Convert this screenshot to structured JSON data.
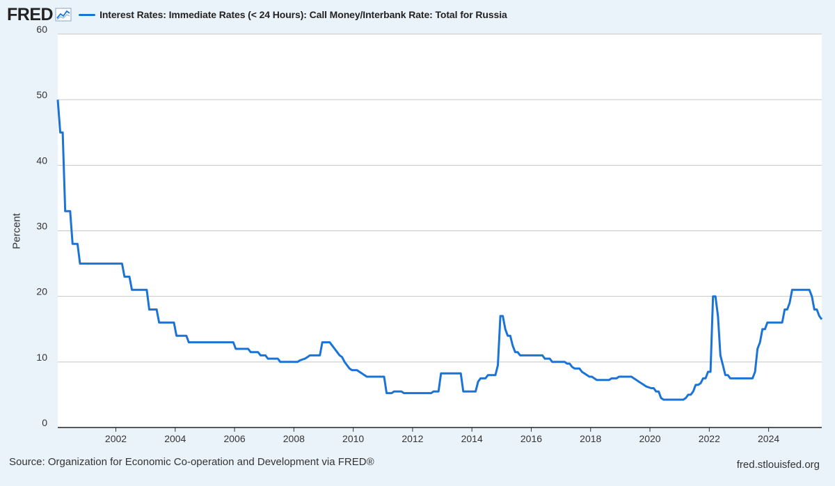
{
  "header": {
    "logo_text": "FRED",
    "logo_icon": "line-chart-icon"
  },
  "chart_data": {
    "type": "line",
    "title": "",
    "ylabel": "Percent",
    "xlabel": "",
    "ylim": [
      0,
      60
    ],
    "yticks": [
      0,
      10,
      20,
      30,
      40,
      50,
      60
    ],
    "xticks": [
      "2002",
      "2004",
      "2006",
      "2008",
      "2010",
      "2012",
      "2014",
      "2016",
      "2018",
      "2020",
      "2022",
      "2024"
    ],
    "grid": true,
    "legend_position": "top-left",
    "colors": {
      "series": "#1a73d6",
      "grid": "#c8c8c8",
      "plot_bg": "#ffffff",
      "page_bg": "#eaf2fa"
    },
    "series": [
      {
        "name": "Interest Rates: Immediate Rates (< 24 Hours): Call Money/Interbank Rate: Total for Russia",
        "points": [
          [
            "2000-01",
            50
          ],
          [
            "2000-02",
            45
          ],
          [
            "2000-03",
            45
          ],
          [
            "2000-04",
            33
          ],
          [
            "2000-06",
            33
          ],
          [
            "2000-07",
            28
          ],
          [
            "2000-09",
            28
          ],
          [
            "2000-10",
            25
          ],
          [
            "2002-03",
            25
          ],
          [
            "2002-04",
            23
          ],
          [
            "2002-06",
            23
          ],
          [
            "2002-07",
            21
          ],
          [
            "2003-01",
            21
          ],
          [
            "2003-02",
            18
          ],
          [
            "2003-05",
            18
          ],
          [
            "2003-06",
            16
          ],
          [
            "2003-12",
            16
          ],
          [
            "2004-01",
            14
          ],
          [
            "2004-05",
            14
          ],
          [
            "2004-06",
            13
          ],
          [
            "2005-12",
            13
          ],
          [
            "2006-01",
            12
          ],
          [
            "2006-06",
            12
          ],
          [
            "2006-07",
            11.5
          ],
          [
            "2006-10",
            11.5
          ],
          [
            "2006-11",
            11
          ],
          [
            "2007-01",
            11
          ],
          [
            "2007-02",
            10.5
          ],
          [
            "2007-06",
            10.5
          ],
          [
            "2007-07",
            10
          ],
          [
            "2008-02",
            10
          ],
          [
            "2008-03",
            10.25
          ],
          [
            "2008-05",
            10.5
          ],
          [
            "2008-06",
            10.75
          ],
          [
            "2008-07",
            11
          ],
          [
            "2008-11",
            11
          ],
          [
            "2008-12",
            13
          ],
          [
            "2009-03",
            13
          ],
          [
            "2009-04",
            12.5
          ],
          [
            "2009-05",
            12
          ],
          [
            "2009-06",
            11.5
          ],
          [
            "2009-07",
            11
          ],
          [
            "2009-08",
            10.75
          ],
          [
            "2009-09",
            10
          ],
          [
            "2009-10",
            9.5
          ],
          [
            "2009-11",
            9
          ],
          [
            "2009-12",
            8.75
          ],
          [
            "2010-02",
            8.75
          ],
          [
            "2010-03",
            8.5
          ],
          [
            "2010-04",
            8.25
          ],
          [
            "2010-05",
            8
          ],
          [
            "2010-06",
            7.75
          ],
          [
            "2011-01",
            7.75
          ],
          [
            "2011-02",
            5.25
          ],
          [
            "2011-04",
            5.25
          ],
          [
            "2011-05",
            5.5
          ],
          [
            "2011-08",
            5.5
          ],
          [
            "2011-09",
            5.25
          ],
          [
            "2012-08",
            5.25
          ],
          [
            "2012-09",
            5.5
          ],
          [
            "2012-11",
            5.5
          ],
          [
            "2012-12",
            8.25
          ],
          [
            "2013-08",
            8.25
          ],
          [
            "2013-09",
            5.5
          ],
          [
            "2014-02",
            5.5
          ],
          [
            "2014-03",
            7
          ],
          [
            "2014-04",
            7.5
          ],
          [
            "2014-06",
            7.5
          ],
          [
            "2014-07",
            8
          ],
          [
            "2014-10",
            8
          ],
          [
            "2014-11",
            9.5
          ],
          [
            "2014-12",
            17
          ],
          [
            "2015-01",
            17
          ],
          [
            "2015-02",
            15
          ],
          [
            "2015-03",
            14
          ],
          [
            "2015-04",
            14
          ],
          [
            "2015-05",
            12.5
          ],
          [
            "2015-06",
            11.5
          ],
          [
            "2015-07",
            11.5
          ],
          [
            "2015-08",
            11
          ],
          [
            "2016-05",
            11
          ],
          [
            "2016-06",
            10.5
          ],
          [
            "2016-08",
            10.5
          ],
          [
            "2016-09",
            10
          ],
          [
            "2017-02",
            10
          ],
          [
            "2017-03",
            9.75
          ],
          [
            "2017-04",
            9.75
          ],
          [
            "2017-05",
            9.25
          ],
          [
            "2017-06",
            9
          ],
          [
            "2017-08",
            9
          ],
          [
            "2017-09",
            8.5
          ],
          [
            "2017-10",
            8.25
          ],
          [
            "2017-12",
            7.75
          ],
          [
            "2018-01",
            7.75
          ],
          [
            "2018-02",
            7.5
          ],
          [
            "2018-03",
            7.25
          ],
          [
            "2018-08",
            7.25
          ],
          [
            "2018-09",
            7.5
          ],
          [
            "2018-11",
            7.5
          ],
          [
            "2018-12",
            7.75
          ],
          [
            "2019-05",
            7.75
          ],
          [
            "2019-06",
            7.5
          ],
          [
            "2019-07",
            7.25
          ],
          [
            "2019-08",
            7
          ],
          [
            "2019-09",
            6.75
          ],
          [
            "2019-10",
            6.5
          ],
          [
            "2019-11",
            6.25
          ],
          [
            "2020-01",
            6
          ],
          [
            "2020-02",
            6
          ],
          [
            "2020-03",
            5.5
          ],
          [
            "2020-04",
            5.5
          ],
          [
            "2020-05",
            4.5
          ],
          [
            "2020-06",
            4.25
          ],
          [
            "2020-07",
            4.25
          ],
          [
            "2021-02",
            4.25
          ],
          [
            "2021-03",
            4.5
          ],
          [
            "2021-04",
            5
          ],
          [
            "2021-05",
            5
          ],
          [
            "2021-06",
            5.5
          ],
          [
            "2021-07",
            6.5
          ],
          [
            "2021-08",
            6.5
          ],
          [
            "2021-09",
            6.75
          ],
          [
            "2021-10",
            7.5
          ],
          [
            "2021-11",
            7.5
          ],
          [
            "2021-12",
            8.5
          ],
          [
            "2022-01",
            8.5
          ],
          [
            "2022-02",
            20
          ],
          [
            "2022-03",
            20
          ],
          [
            "2022-04",
            17
          ],
          [
            "2022-05",
            11
          ],
          [
            "2022-06",
            9.5
          ],
          [
            "2022-07",
            8
          ],
          [
            "2022-08",
            8
          ],
          [
            "2022-09",
            7.5
          ],
          [
            "2023-06",
            7.5
          ],
          [
            "2023-07",
            8.5
          ],
          [
            "2023-08",
            12
          ],
          [
            "2023-09",
            13
          ],
          [
            "2023-10",
            15
          ],
          [
            "2023-11",
            15
          ],
          [
            "2023-12",
            16
          ],
          [
            "2024-06",
            16
          ],
          [
            "2024-07",
            18
          ],
          [
            "2024-08",
            18
          ],
          [
            "2024-09",
            19
          ],
          [
            "2024-10",
            21
          ],
          [
            "2025-05",
            21
          ],
          [
            "2025-06",
            20
          ],
          [
            "2025-07",
            18
          ],
          [
            "2025-08",
            18
          ],
          [
            "2025-09",
            17
          ],
          [
            "2025-10",
            16.5
          ]
        ]
      }
    ]
  },
  "footer": {
    "source": "Source: Organization for Economic Co-operation and Development via FRED®",
    "site": "fred.stlouisfed.org"
  }
}
